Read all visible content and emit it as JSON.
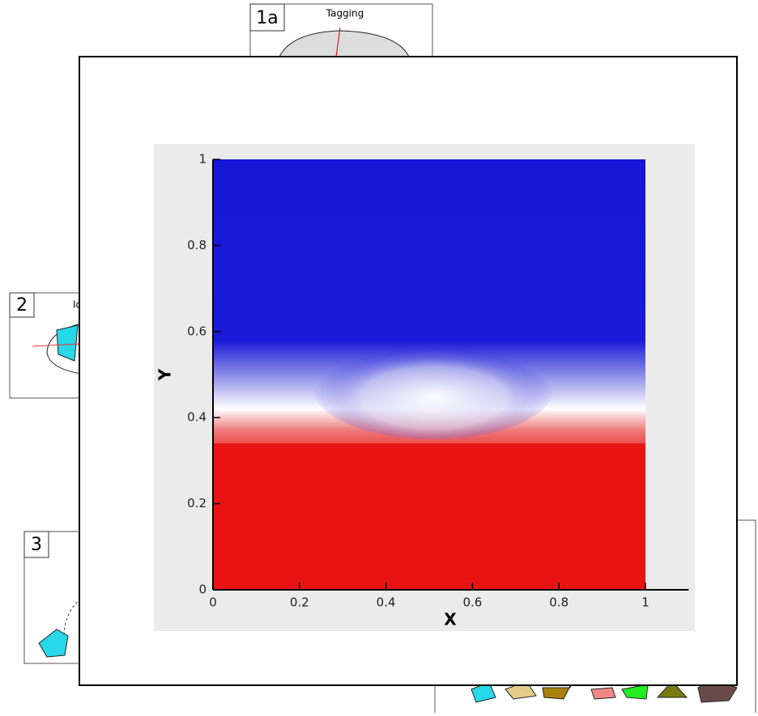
{
  "panels": [
    {
      "label": "1a",
      "title": "Tagging"
    },
    {
      "label": "2",
      "title": "Id"
    },
    {
      "label": "3"
    }
  ],
  "chart_data": {
    "type": "contour",
    "x_label": "X",
    "y_label": "Y",
    "xlim": [
      0,
      1.1
    ],
    "ylim": [
      0,
      1
    ],
    "xticks": [
      0,
      0.2,
      0.4,
      0.6,
      0.8,
      1
    ],
    "yticks": [
      0,
      0.2,
      0.4,
      0.6,
      0.8,
      1
    ]
  }
}
